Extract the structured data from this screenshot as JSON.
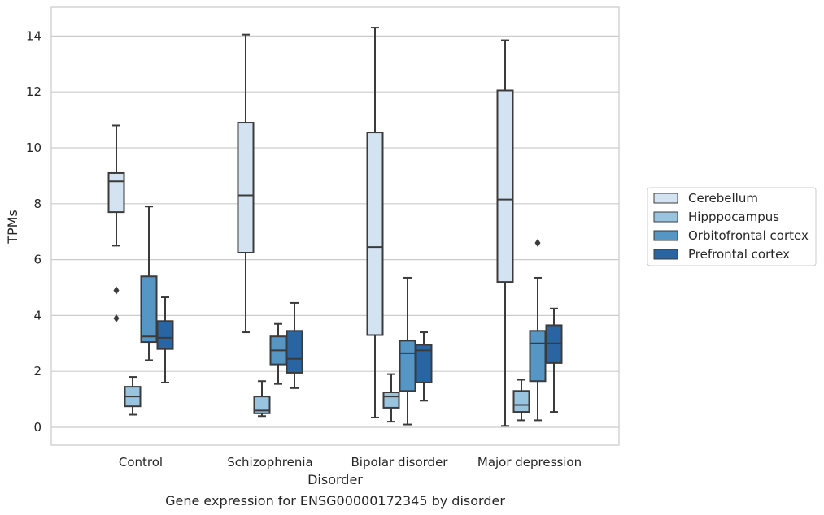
{
  "chart_data": {
    "type": "boxplot",
    "title": "Gene expression for ENSG00000172345 by disorder",
    "xlabel": "Disorder",
    "ylabel": "TPMs",
    "ylim": [
      -0.6,
      15.0
    ],
    "yticks": [
      0,
      2,
      4,
      6,
      8,
      10,
      12,
      14
    ],
    "grid": true,
    "legend_position": "right",
    "categories": [
      "Control",
      "Schizophrenia",
      "Bipolar disorder",
      "Major depression"
    ],
    "series": [
      {
        "name": "Cerebellum",
        "color": "#d4e3f2",
        "boxes": [
          {
            "whislo": 6.5,
            "q1": 7.7,
            "med": 8.8,
            "q3": 9.1,
            "whishi": 10.8,
            "fliers": [
              4.9,
              3.9
            ]
          },
          {
            "whislo": 3.4,
            "q1": 6.25,
            "med": 8.3,
            "q3": 10.9,
            "whishi": 14.05,
            "fliers": []
          },
          {
            "whislo": 0.35,
            "q1": 3.3,
            "med": 6.45,
            "q3": 10.55,
            "whishi": 14.3,
            "fliers": []
          },
          {
            "whislo": 0.05,
            "q1": 5.2,
            "med": 8.15,
            "q3": 12.05,
            "whishi": 13.85,
            "fliers": []
          }
        ]
      },
      {
        "name": "Hipppocampus",
        "color": "#99c4e0",
        "boxes": [
          {
            "whislo": 0.45,
            "q1": 0.75,
            "med": 1.1,
            "q3": 1.45,
            "whishi": 1.8,
            "fliers": []
          },
          {
            "whislo": 0.4,
            "q1": 0.5,
            "med": 0.6,
            "q3": 1.1,
            "whishi": 1.65,
            "fliers": []
          },
          {
            "whislo": 0.2,
            "q1": 0.7,
            "med": 1.1,
            "q3": 1.25,
            "whishi": 1.9,
            "fliers": []
          },
          {
            "whislo": 0.25,
            "q1": 0.55,
            "med": 0.8,
            "q3": 1.3,
            "whishi": 1.7,
            "fliers": []
          }
        ]
      },
      {
        "name": "Orbitofrontal cortex",
        "color": "#5596c5",
        "boxes": [
          {
            "whislo": 2.4,
            "q1": 3.05,
            "med": 3.25,
            "q3": 5.4,
            "whishi": 7.9,
            "fliers": []
          },
          {
            "whislo": 1.55,
            "q1": 2.25,
            "med": 2.75,
            "q3": 3.25,
            "whishi": 3.7,
            "fliers": []
          },
          {
            "whislo": 0.1,
            "q1": 1.3,
            "med": 2.65,
            "q3": 3.1,
            "whishi": 5.35,
            "fliers": []
          },
          {
            "whislo": 0.25,
            "q1": 1.65,
            "med": 3.0,
            "q3": 3.45,
            "whishi": 5.35,
            "fliers": [
              6.6
            ]
          }
        ]
      },
      {
        "name": "Prefrontal cortex",
        "color": "#2965a3",
        "boxes": [
          {
            "whislo": 1.6,
            "q1": 2.8,
            "med": 3.2,
            "q3": 3.8,
            "whishi": 4.65,
            "fliers": []
          },
          {
            "whislo": 1.4,
            "q1": 1.95,
            "med": 2.45,
            "q3": 3.45,
            "whishi": 4.45,
            "fliers": []
          },
          {
            "whislo": 0.95,
            "q1": 1.6,
            "med": 2.75,
            "q3": 2.95,
            "whishi": 3.4,
            "fliers": []
          },
          {
            "whislo": 0.55,
            "q1": 2.3,
            "med": 3.0,
            "q3": 3.65,
            "whishi": 4.25,
            "fliers": []
          }
        ]
      }
    ]
  }
}
